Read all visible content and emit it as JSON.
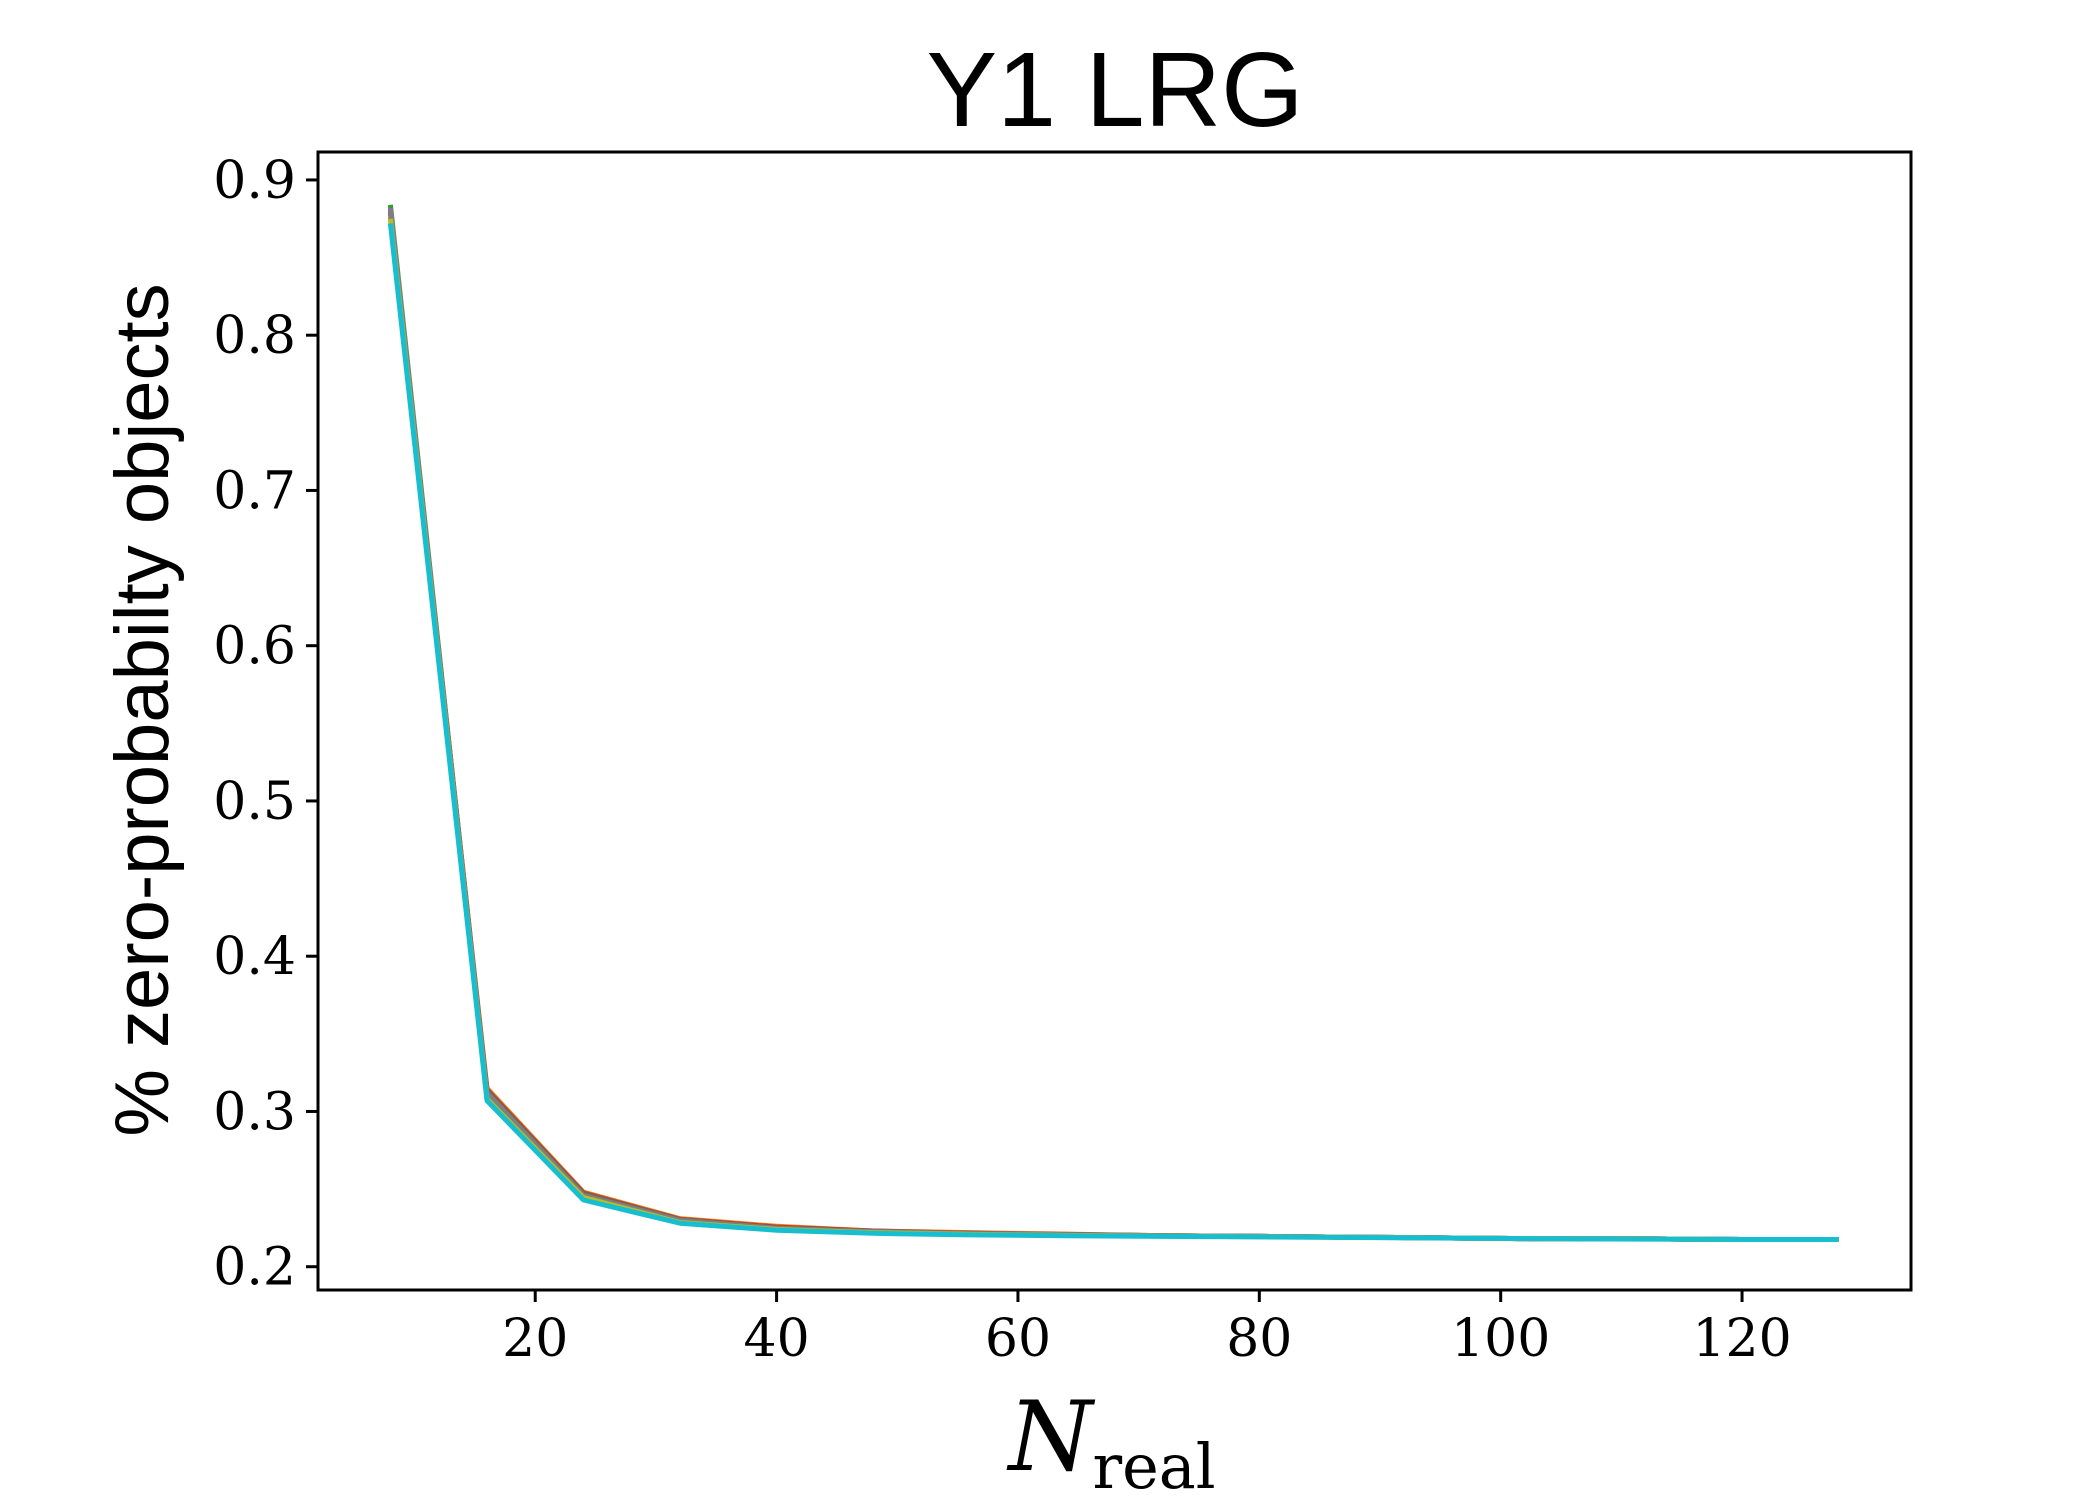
{
  "chart_data": {
    "type": "line",
    "title": "Y1 LRG",
    "xlabel": "N",
    "xlabel_subscript": "real",
    "ylabel": "% zero-probabilty objects",
    "xlim": [
      2,
      134
    ],
    "ylim": [
      0.185,
      0.918
    ],
    "xticks": [
      20,
      40,
      60,
      80,
      100,
      120
    ],
    "yticks": [
      0.2,
      0.3,
      0.4,
      0.5,
      0.6,
      0.7,
      0.8,
      0.9
    ],
    "xtick_labels": [
      "20",
      "40",
      "60",
      "80",
      "100",
      "120"
    ],
    "ytick_labels": [
      "0.2",
      "0.3",
      "0.4",
      "0.5",
      "0.6",
      "0.7",
      "0.8",
      "0.9"
    ],
    "grid": false,
    "x": [
      8,
      16,
      24,
      32,
      40,
      48,
      56,
      64,
      72,
      80,
      88,
      96,
      104,
      112,
      120,
      128
    ],
    "series": [
      {
        "color": "#1f77b4",
        "values": [
          0.88,
          0.31,
          0.245,
          0.229,
          0.224,
          0.222,
          0.221,
          0.2205,
          0.22,
          0.2195,
          0.219,
          0.2185,
          0.218,
          0.218,
          0.2175,
          0.2175
        ]
      },
      {
        "color": "#ff7f0e",
        "values": [
          0.878,
          0.315,
          0.248,
          0.231,
          0.226,
          0.223,
          0.222,
          0.221,
          0.22,
          0.2195,
          0.219,
          0.2185,
          0.218,
          0.218,
          0.2175,
          0.2175
        ]
      },
      {
        "color": "#2ca02c",
        "values": [
          0.884,
          0.312,
          0.246,
          0.23,
          0.225,
          0.2225,
          0.2215,
          0.2205,
          0.22,
          0.2195,
          0.219,
          0.2185,
          0.218,
          0.218,
          0.2175,
          0.2175
        ]
      },
      {
        "color": "#d62728",
        "values": [
          0.876,
          0.313,
          0.247,
          0.2305,
          0.2255,
          0.223,
          0.2215,
          0.2208,
          0.22,
          0.2195,
          0.219,
          0.2185,
          0.218,
          0.218,
          0.2175,
          0.2175
        ]
      },
      {
        "color": "#9467bd",
        "values": [
          0.882,
          0.311,
          0.2465,
          0.2295,
          0.2245,
          0.2225,
          0.2212,
          0.2205,
          0.22,
          0.2195,
          0.219,
          0.2185,
          0.218,
          0.218,
          0.2175,
          0.2175
        ]
      },
      {
        "color": "#8c564b",
        "values": [
          0.879,
          0.314,
          0.2475,
          0.2305,
          0.2252,
          0.2228,
          0.2215,
          0.2207,
          0.22,
          0.2195,
          0.219,
          0.2185,
          0.218,
          0.218,
          0.2175,
          0.2175
        ]
      },
      {
        "color": "#e377c2",
        "values": [
          0.877,
          0.309,
          0.2455,
          0.229,
          0.2242,
          0.2222,
          0.221,
          0.2203,
          0.2198,
          0.2194,
          0.219,
          0.2185,
          0.218,
          0.218,
          0.2175,
          0.2175
        ]
      },
      {
        "color": "#7f7f7f",
        "values": [
          0.881,
          0.312,
          0.246,
          0.2298,
          0.2248,
          0.2226,
          0.2213,
          0.2206,
          0.22,
          0.2195,
          0.219,
          0.2185,
          0.218,
          0.218,
          0.2175,
          0.2175
        ]
      },
      {
        "color": "#bcbd22",
        "values": [
          0.875,
          0.308,
          0.2445,
          0.2285,
          0.224,
          0.222,
          0.2208,
          0.2202,
          0.2197,
          0.2193,
          0.2189,
          0.2185,
          0.218,
          0.218,
          0.2175,
          0.2175
        ]
      },
      {
        "color": "#17becf",
        "values": [
          0.872,
          0.307,
          0.243,
          0.228,
          0.2235,
          0.2215,
          0.2205,
          0.22,
          0.2195,
          0.2192,
          0.2188,
          0.2184,
          0.218,
          0.2178,
          0.2175,
          0.2175
        ]
      }
    ]
  }
}
